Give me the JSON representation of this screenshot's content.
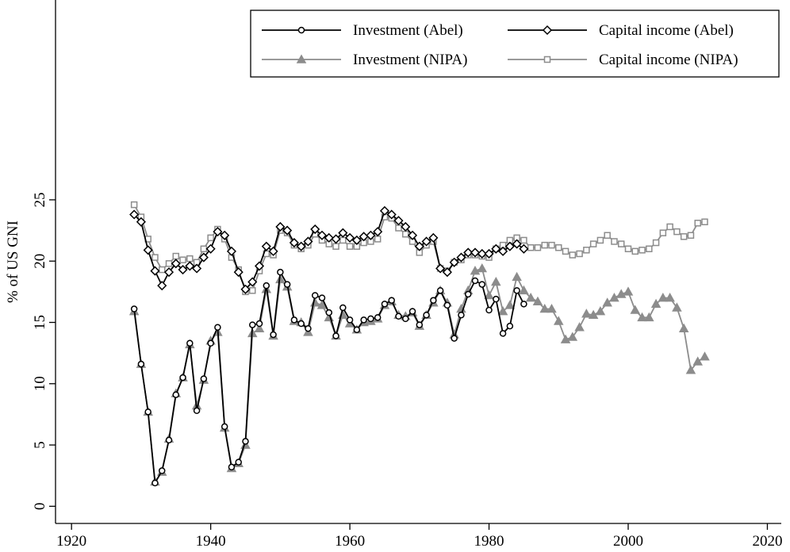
{
  "chart_data": {
    "type": "line",
    "y_label": "% of US GNI",
    "x": [
      1929,
      1930,
      1931,
      1932,
      1933,
      1934,
      1935,
      1936,
      1937,
      1938,
      1939,
      1940,
      1941,
      1942,
      1943,
      1944,
      1945,
      1946,
      1947,
      1948,
      1949,
      1950,
      1951,
      1952,
      1953,
      1954,
      1955,
      1956,
      1957,
      1958,
      1959,
      1960,
      1961,
      1962,
      1963,
      1964,
      1965,
      1966,
      1967,
      1968,
      1969,
      1970,
      1971,
      1972,
      1973,
      1974,
      1975,
      1976,
      1977,
      1978,
      1979,
      1980,
      1981,
      1982,
      1983,
      1984,
      1985,
      1986,
      1987,
      1988,
      1989,
      1990,
      1991,
      1992,
      1993,
      1994,
      1995,
      1996,
      1997,
      1998,
      1999,
      2000,
      2001,
      2002,
      2003,
      2004,
      2005,
      2006,
      2007,
      2008,
      2009,
      2010,
      2011
    ],
    "series": [
      {
        "name": "Investment (Abel)",
        "color": "#000000",
        "marker": "circle",
        "values": [
          16.1,
          11.6,
          7.7,
          1.9,
          2.9,
          5.4,
          9.1,
          10.5,
          13.3,
          7.8,
          10.4,
          13.3,
          14.6,
          6.5,
          3.2,
          3.6,
          5.3,
          14.8,
          14.9,
          18.0,
          14.0,
          19.1,
          18.1,
          15.2,
          14.9,
          14.5,
          17.2,
          17.0,
          15.8,
          13.9,
          16.2,
          15.2,
          14.4,
          15.2,
          15.3,
          15.4,
          16.5,
          16.8,
          15.5,
          15.3,
          15.9,
          14.8,
          15.6,
          16.8,
          17.6,
          16.4,
          13.7,
          15.6,
          17.3,
          18.4,
          18.1,
          16.0,
          16.9,
          14.1,
          14.7,
          17.6,
          16.5,
          null,
          null,
          null,
          null,
          null,
          null,
          null,
          null,
          null,
          null,
          null,
          null,
          null,
          null,
          null,
          null,
          null,
          null,
          null,
          null,
          null,
          null,
          null,
          null,
          null,
          null
        ]
      },
      {
        "name": "Capital income (Abel)",
        "color": "#000000",
        "marker": "diamond",
        "values": [
          23.8,
          23.2,
          20.9,
          19.2,
          18.0,
          19.1,
          19.8,
          19.3,
          19.6,
          19.4,
          20.3,
          21.0,
          22.4,
          22.1,
          20.8,
          19.1,
          17.7,
          18.3,
          19.6,
          21.2,
          20.8,
          22.8,
          22.5,
          21.5,
          21.2,
          21.6,
          22.6,
          22.1,
          21.9,
          21.8,
          22.3,
          21.9,
          21.7,
          22.0,
          22.1,
          22.4,
          24.1,
          23.8,
          23.3,
          22.8,
          22.1,
          21.2,
          21.6,
          21.9,
          19.4,
          19.1,
          19.9,
          20.3,
          20.7,
          20.7,
          20.6,
          20.6,
          21.0,
          20.8,
          21.2,
          21.4,
          21.0,
          null,
          null,
          null,
          null,
          null,
          null,
          null,
          null,
          null,
          null,
          null,
          null,
          null,
          null,
          null,
          null,
          null,
          null,
          null,
          null,
          null,
          null,
          null,
          null,
          null,
          null
        ]
      },
      {
        "name": "Investment (NIPA)",
        "color": "#8c8c8c",
        "marker": "triangle",
        "values": [
          15.9,
          11.6,
          7.7,
          2.0,
          2.8,
          5.5,
          9.2,
          10.5,
          13.2,
          8.2,
          10.3,
          13.5,
          14.2,
          6.4,
          3.1,
          3.5,
          5.0,
          14.1,
          14.5,
          17.7,
          13.9,
          18.5,
          17.9,
          15.1,
          15.0,
          14.2,
          16.6,
          16.4,
          15.4,
          13.9,
          15.6,
          14.9,
          14.4,
          15.0,
          15.1,
          15.3,
          16.4,
          16.7,
          15.6,
          15.5,
          15.8,
          14.7,
          15.6,
          16.6,
          17.6,
          16.6,
          14.0,
          16.1,
          17.6,
          19.2,
          19.4,
          17.2,
          18.3,
          15.9,
          16.4,
          18.7,
          17.6,
          17.0,
          16.7,
          16.1,
          16.1,
          15.1,
          13.6,
          13.8,
          14.6,
          15.7,
          15.6,
          15.9,
          16.6,
          17.0,
          17.3,
          17.5,
          16.0,
          15.4,
          15.4,
          16.5,
          17.0,
          17.0,
          16.2,
          14.5,
          11.1,
          11.8,
          12.2
        ]
      },
      {
        "name": "Capital income (NIPA)",
        "color": "#8c8c8c",
        "marker": "square",
        "values": [
          24.6,
          23.6,
          21.8,
          20.3,
          19.3,
          19.8,
          20.4,
          20.1,
          20.2,
          19.9,
          21.0,
          21.9,
          22.6,
          21.8,
          20.3,
          19.3,
          17.5,
          17.6,
          19.2,
          20.6,
          20.5,
          22.5,
          22.3,
          21.3,
          21.0,
          21.3,
          22.2,
          21.7,
          21.4,
          21.2,
          21.7,
          21.2,
          21.2,
          21.5,
          21.6,
          21.8,
          23.6,
          23.5,
          22.7,
          22.2,
          21.6,
          20.7,
          21.3,
          21.6,
          19.4,
          19.2,
          19.9,
          20.1,
          20.5,
          20.5,
          20.4,
          20.3,
          21.0,
          21.3,
          21.7,
          21.9,
          21.7,
          21.1,
          21.1,
          21.3,
          21.3,
          21.1,
          20.8,
          20.5,
          20.6,
          20.9,
          21.4,
          21.7,
          22.1,
          21.6,
          21.4,
          21.0,
          20.8,
          20.9,
          21.0,
          21.5,
          22.3,
          22.8,
          22.4,
          22.0,
          22.1,
          23.1,
          23.2
        ]
      }
    ],
    "xlim": [
      1917.7,
      2022
    ],
    "xticks": [
      1920,
      1940,
      1960,
      1980,
      2000,
      2020
    ],
    "ylim": [
      -1.4,
      41.3
    ],
    "yticks": [
      0,
      5,
      10,
      15,
      20,
      25
    ],
    "grid": false,
    "legend": "upper right"
  }
}
